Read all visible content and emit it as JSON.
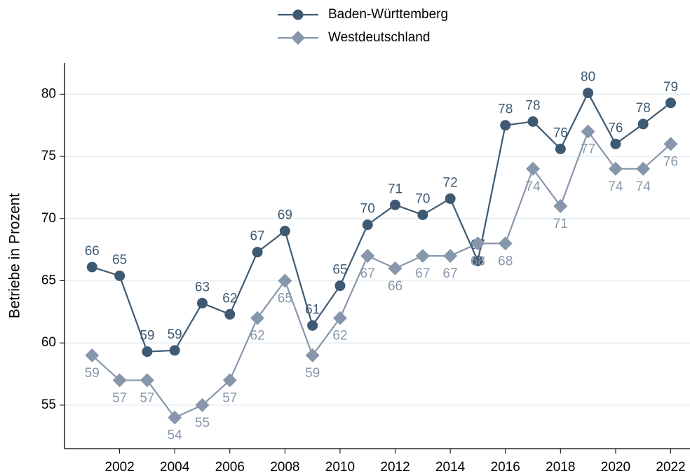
{
  "chart_data": {
    "type": "line",
    "y_label": "Betriebe in Prozent",
    "x": [
      2001,
      2002,
      2003,
      2004,
      2005,
      2006,
      2007,
      2008,
      2009,
      2010,
      2011,
      2012,
      2013,
      2014,
      2015,
      2016,
      2017,
      2018,
      2019,
      2020,
      2021,
      2022
    ],
    "series": [
      {
        "name": "Baden-Württemberg",
        "color": "#3e5a72",
        "marker": "circle",
        "values": [
          66.1,
          65.4,
          59.3,
          59.4,
          63.2,
          62.3,
          67.3,
          69.0,
          61.4,
          64.6,
          69.5,
          71.1,
          70.3,
          71.6,
          66.6,
          77.5,
          77.8,
          75.6,
          80.1,
          76.0,
          77.6,
          79.3
        ],
        "value_labels": [
          "66",
          "65",
          "59",
          "59",
          "63",
          "62",
          "67",
          "69",
          "61",
          "65",
          "70",
          "71",
          "70",
          "72",
          "67",
          "78",
          "78",
          "76",
          "80",
          "76",
          "78",
          "79"
        ]
      },
      {
        "name": "Westdeutschland",
        "color": "#8797ab",
        "marker": "diamond",
        "values": [
          59,
          57,
          57,
          54,
          55,
          57,
          62,
          65,
          59,
          62,
          67,
          66,
          67,
          67,
          68,
          68,
          74,
          71,
          77,
          74,
          74,
          76
        ]
      }
    ],
    "xlim": [
      2000,
      2022.7
    ],
    "xticks": [
      2002,
      2004,
      2006,
      2008,
      2010,
      2012,
      2014,
      2016,
      2018,
      2020,
      2022
    ],
    "ylim": [
      51.5,
      82.5
    ],
    "yticks": [
      55,
      60,
      65,
      70,
      75,
      80
    ],
    "grid": true,
    "legend": "top"
  }
}
